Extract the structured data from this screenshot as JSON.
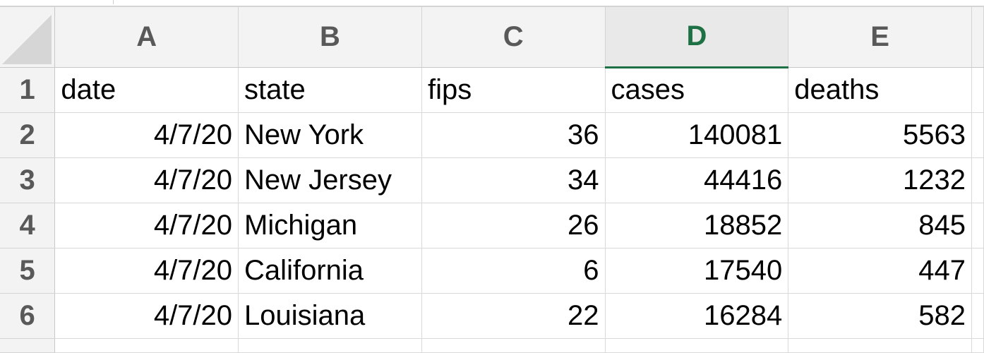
{
  "columns": [
    "A",
    "B",
    "C",
    "D",
    "E"
  ],
  "selected_column": "D",
  "rows": [
    {
      "num": "1",
      "cells": [
        "date",
        "state",
        "fips",
        "cases",
        "deaths"
      ]
    },
    {
      "num": "2",
      "cells": [
        "4/7/20",
        "New York",
        "36",
        "140081",
        "5563"
      ]
    },
    {
      "num": "3",
      "cells": [
        "4/7/20",
        "New Jersey",
        "34",
        "44416",
        "1232"
      ]
    },
    {
      "num": "4",
      "cells": [
        "4/7/20",
        "Michigan",
        "26",
        "18852",
        "845"
      ]
    },
    {
      "num": "5",
      "cells": [
        "4/7/20",
        "California",
        "6",
        "17540",
        "447"
      ]
    },
    {
      "num": "6",
      "cells": [
        "4/7/20",
        "Louisiana",
        "22",
        "16284",
        "582"
      ]
    }
  ],
  "colors": {
    "selected_header": "#1e7145",
    "header_bg": "#f3f3f3",
    "gridline": "#d9d9d9"
  }
}
